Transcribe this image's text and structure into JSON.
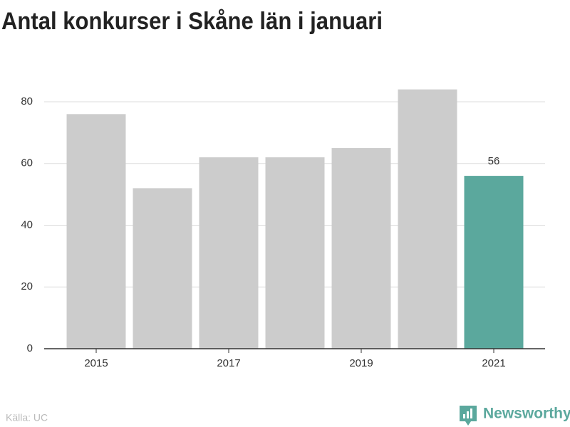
{
  "chart_data": {
    "type": "bar",
    "title": "Antal konkurser i Skåne län i januari",
    "categories": [
      "2015",
      null,
      "2017",
      null,
      "2019",
      null,
      "2021"
    ],
    "values": [
      76,
      52,
      62,
      62,
      65,
      84,
      56
    ],
    "color": "#cccccc",
    "highlight_index": 6,
    "highlight_color": "#5ba89d",
    "ylim": [
      0,
      85
    ],
    "yticks": [
      0,
      20,
      40,
      60,
      80
    ],
    "grid": true,
    "source": "Källa: UC",
    "brand": "Newsworthy"
  }
}
